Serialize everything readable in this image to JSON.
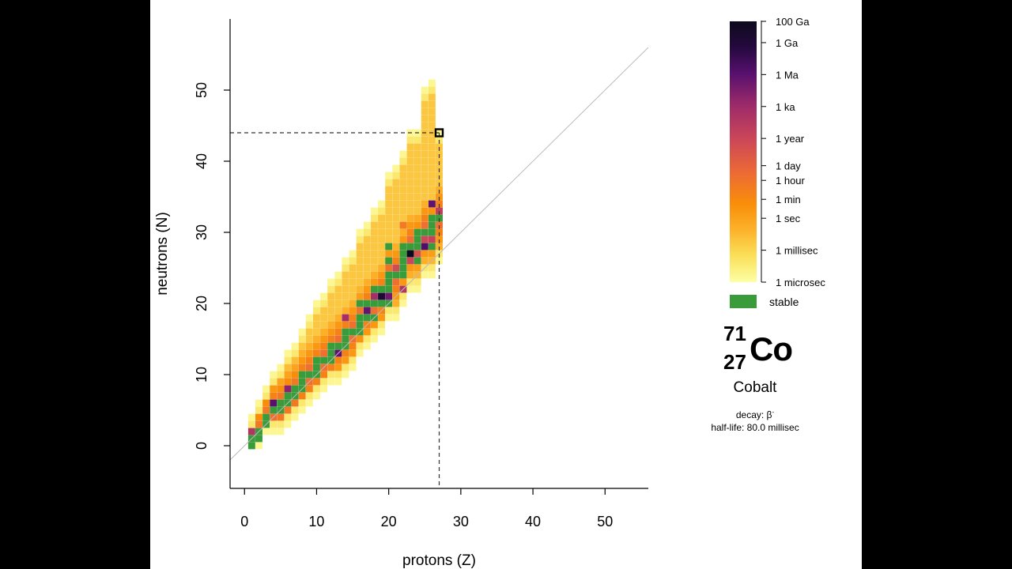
{
  "chart_data": {
    "type": "heatmap",
    "title": "",
    "xlabel": "protons (Z)",
    "ylabel": "neutrons (N)",
    "xlim": [
      -2,
      56
    ],
    "ylim": [
      -6,
      60
    ],
    "x_ticks": [
      0,
      10,
      20,
      30,
      40,
      50
    ],
    "y_ticks": [
      0,
      10,
      20,
      30,
      40,
      50
    ],
    "diagonal_line": "N = Z",
    "colorbar": {
      "colormap": "inferno (reversed)",
      "labels": [
        "100 Ga",
        "1 Ga",
        "1 Ma",
        "1 ka",
        "1 year",
        "1 day",
        "1 hour",
        "1 min",
        "1 sec",
        "1 millisec",
        "1 microsec"
      ],
      "log10_seconds": [
        18.5,
        16.5,
        13.5,
        10.5,
        7.5,
        4.94,
        3.56,
        1.78,
        0,
        -3,
        -6
      ],
      "range_log10_seconds": [
        -6,
        18.5
      ]
    },
    "stable_legend": {
      "label": "stable",
      "color": "#3a9b3a"
    },
    "stable_isotopes": [
      [
        1,
        0
      ],
      [
        1,
        1
      ],
      [
        2,
        1
      ],
      [
        2,
        2
      ],
      [
        3,
        3
      ],
      [
        3,
        4
      ],
      [
        4,
        5
      ],
      [
        5,
        5
      ],
      [
        5,
        6
      ],
      [
        6,
        6
      ],
      [
        6,
        7
      ],
      [
        7,
        7
      ],
      [
        7,
        8
      ],
      [
        8,
        8
      ],
      [
        8,
        9
      ],
      [
        8,
        10
      ],
      [
        9,
        10
      ],
      [
        10,
        10
      ],
      [
        10,
        11
      ],
      [
        10,
        12
      ],
      [
        11,
        12
      ],
      [
        12,
        12
      ],
      [
        12,
        13
      ],
      [
        12,
        14
      ],
      [
        13,
        14
      ],
      [
        14,
        14
      ],
      [
        14,
        15
      ],
      [
        14,
        16
      ],
      [
        15,
        16
      ],
      [
        16,
        16
      ],
      [
        16,
        17
      ],
      [
        16,
        18
      ],
      [
        16,
        20
      ],
      [
        17,
        18
      ],
      [
        17,
        20
      ],
      [
        18,
        18
      ],
      [
        18,
        20
      ],
      [
        18,
        22
      ],
      [
        19,
        20
      ],
      [
        19,
        22
      ],
      [
        20,
        20
      ],
      [
        20,
        22
      ],
      [
        20,
        23
      ],
      [
        20,
        24
      ],
      [
        20,
        26
      ],
      [
        20,
        28
      ],
      [
        21,
        24
      ],
      [
        22,
        24
      ],
      [
        22,
        25
      ],
      [
        22,
        26
      ],
      [
        22,
        27
      ],
      [
        22,
        28
      ],
      [
        23,
        28
      ],
      [
        24,
        26
      ],
      [
        24,
        28
      ],
      [
        24,
        29
      ],
      [
        24,
        30
      ],
      [
        25,
        30
      ],
      [
        26,
        28
      ],
      [
        26,
        30
      ],
      [
        26,
        31
      ],
      [
        26,
        32
      ],
      [
        27,
        32
      ]
    ],
    "highlight": {
      "Z": 27,
      "N": 44
    }
  },
  "nuclide": {
    "mass_number": "71",
    "atomic_number": "27",
    "symbol": "Co",
    "name": "Cobalt",
    "decay": "decay: β",
    "decay_sup": "-",
    "half_life": "half-life: 80.0 millisec"
  }
}
